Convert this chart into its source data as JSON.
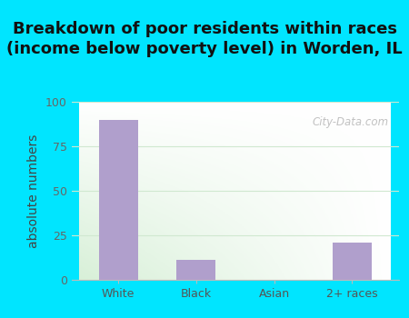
{
  "title": "Breakdown of poor residents within races\n(income below poverty level) in Worden, IL",
  "categories": [
    "White",
    "Black",
    "Asian",
    "2+ races"
  ],
  "values": [
    90,
    11,
    0,
    21
  ],
  "bar_color": "#b09fcc",
  "ylabel": "absolute numbers",
  "ylim": [
    0,
    100
  ],
  "yticks": [
    0,
    25,
    50,
    75,
    100
  ],
  "background_outer": "#00e5ff",
  "background_plot_top": "#f5f5f5",
  "background_plot_bottom_left": "#d8f0d8",
  "title_fontsize": 13.0,
  "axis_label_fontsize": 10,
  "tick_fontsize": 9,
  "watermark_text": "City-Data.com",
  "grid_color": "#d0e8d0",
  "title_color": "#111111"
}
